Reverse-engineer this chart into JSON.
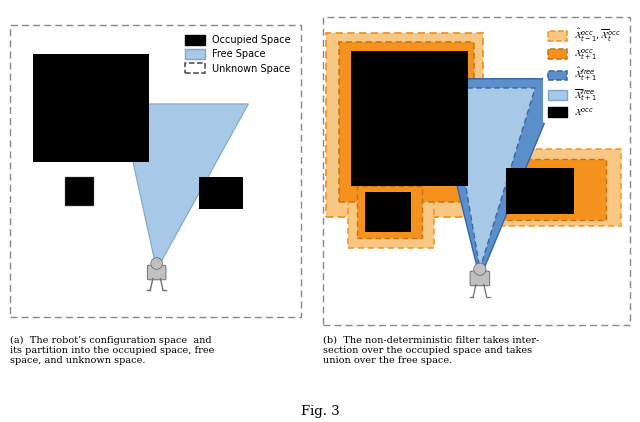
{
  "fig_title": "Fig. 3",
  "caption_a": "(a)  The robot’s configuration space  and\nits partition into the occupied space, free\nspace, and unknown space.",
  "caption_b": "(b)  The non-deterministic filter takes inter-\nsection over the occupied space and takes\nunion over the free space.",
  "blue_light": "#a8c8e8",
  "blue_dark": "#5b8fc9",
  "orange_light": "#f9c784",
  "orange_dark": "#f5921e",
  "border_dash": [
    5,
    3
  ]
}
